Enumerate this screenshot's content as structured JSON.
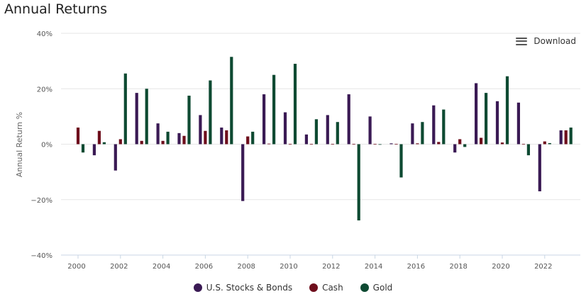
{
  "header": {
    "title": "Annual Returns"
  },
  "toolbar": {
    "download_label": "Download",
    "menu_icon": "hamburger-menu-icon"
  },
  "colors": {
    "stocks_bonds": "#3a1a54",
    "cash": "#6e0e1c",
    "gold": "#0e4a32",
    "grid": "#e6e6e6",
    "axis": "#c8d6e4"
  },
  "chart_data": {
    "type": "bar",
    "title": "Annual Returns",
    "xlabel": "",
    "ylabel": "Annual Return %",
    "ylim": [
      -40,
      40
    ],
    "yticks": [
      -40,
      -20,
      0,
      20,
      40
    ],
    "ytick_labels": [
      "−40%",
      "−20%",
      "0%",
      "20%",
      "40%"
    ],
    "xtick_labels": [
      "2000",
      "2002",
      "2004",
      "2006",
      "2008",
      "2010",
      "2012",
      "2014",
      "2016",
      "2018",
      "2020",
      "2022"
    ],
    "categories": [
      "2000",
      "2001",
      "2002",
      "2003",
      "2004",
      "2005",
      "2006",
      "2007",
      "2008",
      "2009",
      "2010",
      "2011",
      "2012",
      "2013",
      "2014",
      "2015",
      "2016",
      "2017",
      "2018",
      "2019",
      "2020",
      "2021",
      "2022",
      "2023"
    ],
    "series": [
      {
        "name": "U.S. Stocks & Bonds",
        "color": "#3a1a54",
        "values": [
          0,
          -4,
          -9.5,
          18.5,
          7.5,
          4,
          10.5,
          6,
          -20.5,
          18,
          11.5,
          3.5,
          10.5,
          18,
          10,
          0.3,
          7.5,
          14,
          -3,
          22,
          15.5,
          15,
          -17,
          5
        ]
      },
      {
        "name": "Cash",
        "color": "#6e0e1c",
        "values": [
          6,
          4.8,
          1.8,
          1.2,
          1.2,
          3,
          4.8,
          5,
          2.8,
          0.2,
          0.1,
          0.1,
          0.1,
          0.1,
          0.1,
          0.1,
          0.3,
          0.8,
          1.8,
          2.3,
          0.6,
          0.1,
          1,
          5
        ]
      },
      {
        "name": "Gold",
        "color": "#0e4a32",
        "values": [
          -3,
          0.7,
          25.5,
          20,
          4.5,
          17.5,
          23,
          31.5,
          4.5,
          25,
          29,
          9,
          8,
          -27.5,
          -0.2,
          -12,
          8,
          12.5,
          -1,
          18.5,
          24.5,
          -4,
          0.4,
          6
        ]
      }
    ],
    "legend": "bottom-center",
    "grid": true
  }
}
